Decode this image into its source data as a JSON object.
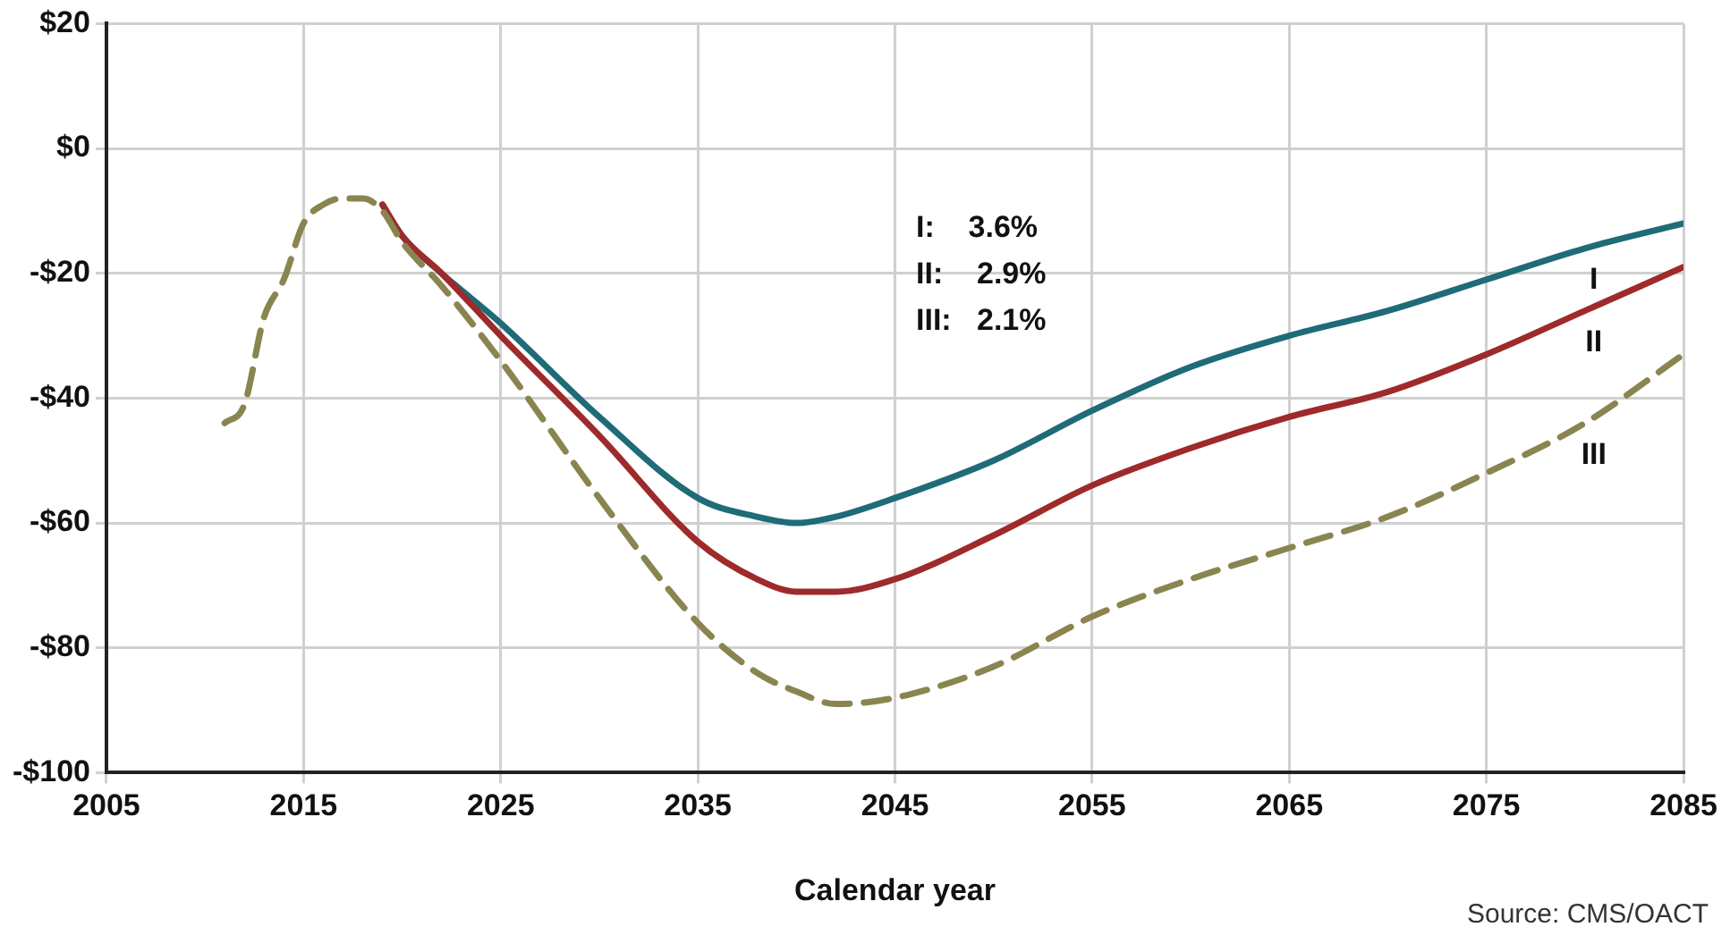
{
  "chart_data": {
    "type": "line",
    "xlabel": "Calendar year",
    "xlim": [
      2005,
      2085
    ],
    "xticks": [
      2005,
      2015,
      2025,
      2035,
      2045,
      2055,
      2065,
      2075,
      2085
    ],
    "ylim": [
      -100,
      20
    ],
    "yticks": [
      {
        "value": 20,
        "label": "$20"
      },
      {
        "value": 0,
        "label": "$0"
      },
      {
        "value": -20,
        "label": "-$20"
      },
      {
        "value": -40,
        "label": "-$40"
      },
      {
        "value": -60,
        "label": "-$60"
      },
      {
        "value": -80,
        "label": "-$80"
      },
      {
        "value": -100,
        "label": "-$100"
      }
    ],
    "grid": true,
    "legend": false,
    "marker": "none",
    "x": [
      2011,
      2012,
      2013,
      2014,
      2015,
      2016,
      2017,
      2018,
      2019,
      2020,
      2022,
      2025,
      2030,
      2035,
      2038,
      2040,
      2042,
      2045,
      2050,
      2055,
      2060,
      2065,
      2070,
      2075,
      2080,
      2085
    ],
    "series": [
      {
        "name": "I",
        "color": "#1f6b78",
        "line_style": "solid",
        "values": [
          null,
          null,
          null,
          null,
          null,
          null,
          null,
          null,
          -9,
          -14,
          -20,
          -28,
          -43,
          -56,
          -59,
          -60,
          -59,
          -56,
          -50,
          -42,
          -35,
          -30,
          -26,
          -21,
          -16,
          -12
        ]
      },
      {
        "name": "II",
        "color": "#9e2a2b",
        "line_style": "solid",
        "values": [
          null,
          null,
          null,
          null,
          null,
          null,
          null,
          null,
          -9,
          -14,
          -20,
          -30,
          -46,
          -63,
          -69,
          -71,
          -71,
          -69,
          -62,
          -54,
          -48,
          -43,
          -39,
          -33,
          -26,
          -19
        ]
      },
      {
        "name": "III",
        "color": "#8a8550",
        "line_style": "dashed",
        "values": [
          -44,
          -41,
          -27,
          -21,
          -12,
          -9,
          -8,
          -8,
          -10,
          -15,
          -22,
          -34,
          -56,
          -76,
          -84,
          -87,
          -89,
          -88,
          -83,
          -75,
          -69,
          -64,
          -59,
          -52,
          -44,
          -33
        ]
      }
    ],
    "annotations": [
      "I:    3.6%",
      "II:    2.9%",
      "III:   2.1%",
      "Source: CMS/OACT"
    ]
  }
}
